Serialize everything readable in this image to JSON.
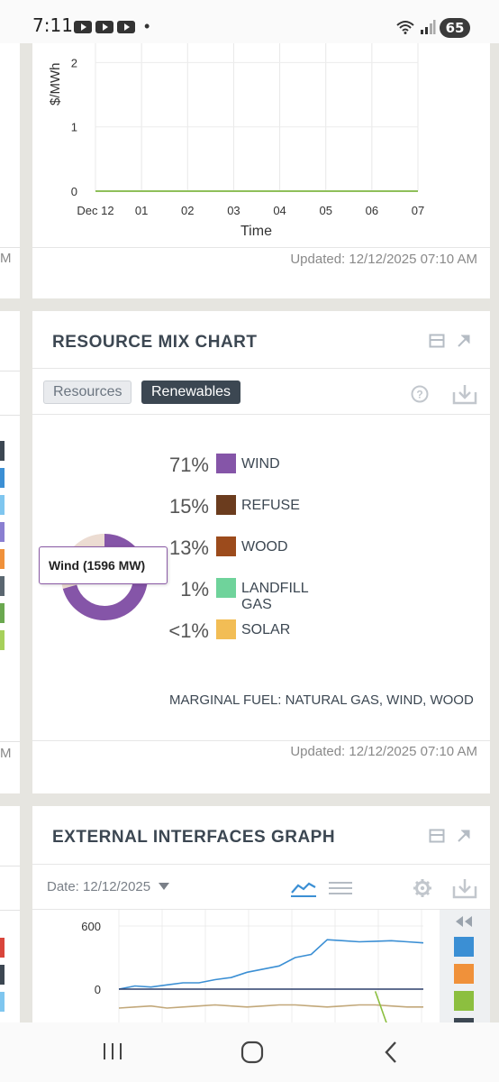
{
  "status_bar": {
    "time": "7:11",
    "battery": "65",
    "icons": [
      "youtube-icon",
      "youtube-icon",
      "youtube-icon",
      "notification-dot",
      "wifi-icon",
      "signal-icon"
    ]
  },
  "price_chart": {
    "ylabel": "$/MWh",
    "xlabel": "Time",
    "updated": "Updated: 12/12/2025 07:10 AM",
    "chart_data": {
      "type": "line",
      "xlabel": "Time",
      "ylabel": "$/MWh",
      "categories": [
        "Dec 12",
        "01",
        "02",
        "03",
        "04",
        "05",
        "06",
        "07"
      ],
      "y_ticks": [
        "0",
        "1",
        "2"
      ],
      "ylim": [
        0,
        2.3
      ],
      "series": [
        {
          "values": [
            0,
            0,
            0,
            0,
            0,
            0,
            0,
            0
          ],
          "color": "#8fbf5a"
        }
      ],
      "grid": true
    }
  },
  "resource_mix": {
    "title": "RESOURCE MIX CHART",
    "tabs": {
      "resources": "Resources",
      "renewables": "Renewables"
    },
    "tooltip": "Wind (1596 MW)",
    "marginal_fuel": "MARGINAL FUEL: NATURAL GAS, WIND, WOOD",
    "updated": "Updated: 12/12/2025 07:10 AM",
    "legend": [
      {
        "pct": "71%",
        "name": "WIND",
        "color": "#8555a8"
      },
      {
        "pct": "15%",
        "name": "REFUSE",
        "color": "#6b3c1e"
      },
      {
        "pct": "13%",
        "name": "WOOD",
        "color": "#9c4b1c"
      },
      {
        "pct": "1%",
        "name": "LANDFILL GAS",
        "color": "#6fd39b"
      },
      {
        "pct": "<1%",
        "name": "SOLAR",
        "color": "#f2bd55"
      }
    ],
    "chart_data": {
      "type": "pie",
      "categories": [
        "WIND",
        "REFUSE",
        "WOOD",
        "LANDFILL GAS",
        "SOLAR"
      ],
      "values": [
        71,
        15,
        13,
        1,
        0.5
      ],
      "colors": [
        "#8555a8",
        "#6b3c1e",
        "#9c4b1c",
        "#6fd39b",
        "#f2bd55"
      ],
      "highlighted": "WIND"
    }
  },
  "external_interfaces": {
    "title": "EXTERNAL INTERFACES GRAPH",
    "date": "Date: 12/12/2025",
    "chart_data": {
      "type": "line",
      "y_ticks": [
        "600",
        "0"
      ],
      "series": [
        {
          "color": "#3b8fd4",
          "values": [
            0,
            30,
            20,
            40,
            60,
            60,
            90,
            110,
            160,
            190,
            220,
            300,
            330,
            470,
            460,
            450,
            455,
            460,
            450,
            440
          ]
        },
        {
          "color": "#2c3f6b",
          "values": [
            0,
            0,
            0,
            0,
            0,
            0,
            0,
            0,
            0,
            0,
            0,
            0,
            0,
            0,
            0,
            0,
            0,
            0,
            0,
            0
          ]
        },
        {
          "color": "#c2a87a",
          "values": [
            -180,
            -170,
            -160,
            -180,
            -170,
            -160,
            -150,
            -160,
            -170,
            -160,
            -150,
            -150,
            -160,
            -170,
            -160,
            -150,
            -150,
            -160,
            -170,
            -170
          ]
        },
        {
          "color": "#8cbf3f",
          "values": [
            null,
            null,
            null,
            null,
            null,
            null,
            null,
            null,
            null,
            null,
            null,
            null,
            null,
            null,
            null,
            null,
            -20,
            -450,
            null,
            null
          ]
        }
      ]
    }
  },
  "left_peek": {
    "m1": "M",
    "m2": "M",
    "swatches": [
      "#3c4752",
      "#3b8fd4",
      "#7fc6ef",
      "#8a7fd1",
      "#f0913a",
      "#5a6670",
      "#6aa84f",
      "#a6d05a"
    ],
    "swatches3": [
      "#d9453b",
      "#3c4752",
      "#7fc6ef"
    ]
  },
  "nav_bar": {
    "items": [
      "recents-button",
      "home-button",
      "back-button"
    ]
  }
}
